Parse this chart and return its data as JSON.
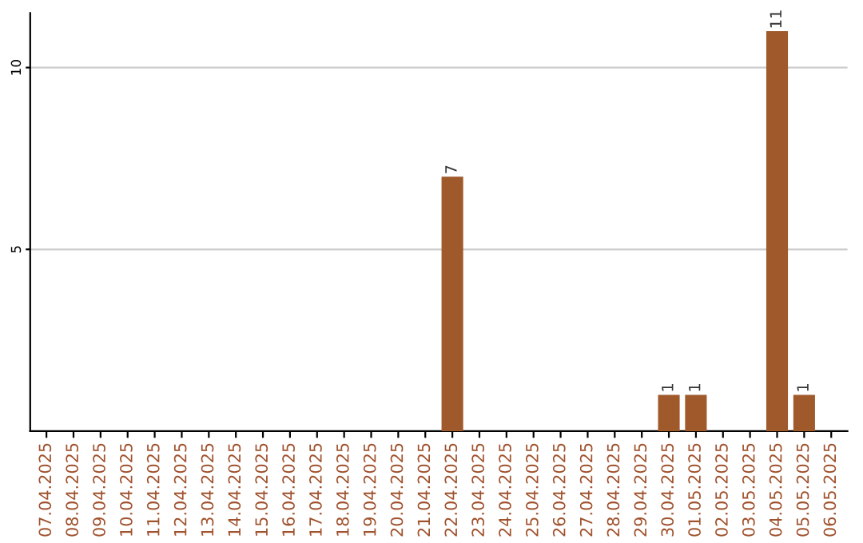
{
  "chart_data": {
    "type": "bar",
    "categories": [
      "07.04.2025",
      "08.04.2025",
      "09.04.2025",
      "10.04.2025",
      "11.04.2025",
      "12.04.2025",
      "13.04.2025",
      "14.04.2025",
      "15.04.2025",
      "16.04.2025",
      "17.04.2025",
      "18.04.2025",
      "19.04.2025",
      "20.04.2025",
      "21.04.2025",
      "22.04.2025",
      "23.04.2025",
      "24.04.2025",
      "25.04.2025",
      "26.04.2025",
      "27.04.2025",
      "28.04.2025",
      "29.04.2025",
      "30.04.2025",
      "01.05.2025",
      "02.05.2025",
      "03.05.2025",
      "04.05.2025",
      "05.05.2025",
      "06.05.2025"
    ],
    "values": [
      0,
      0,
      0,
      0,
      0,
      0,
      0,
      0,
      0,
      0,
      0,
      0,
      0,
      0,
      0,
      7,
      0,
      0,
      0,
      0,
      0,
      0,
      0,
      1,
      1,
      0,
      0,
      11,
      1,
      0
    ],
    "value_labels": [
      null,
      null,
      null,
      null,
      null,
      null,
      null,
      null,
      null,
      null,
      null,
      null,
      null,
      null,
      null,
      "7",
      null,
      null,
      null,
      null,
      null,
      null,
      null,
      "1",
      "1",
      null,
      null,
      "11",
      "1",
      null
    ],
    "color": "#a0592b",
    "ylim": [
      0,
      11.5
    ],
    "yticks": [
      5,
      10
    ],
    "grid": "y",
    "legend": false
  }
}
